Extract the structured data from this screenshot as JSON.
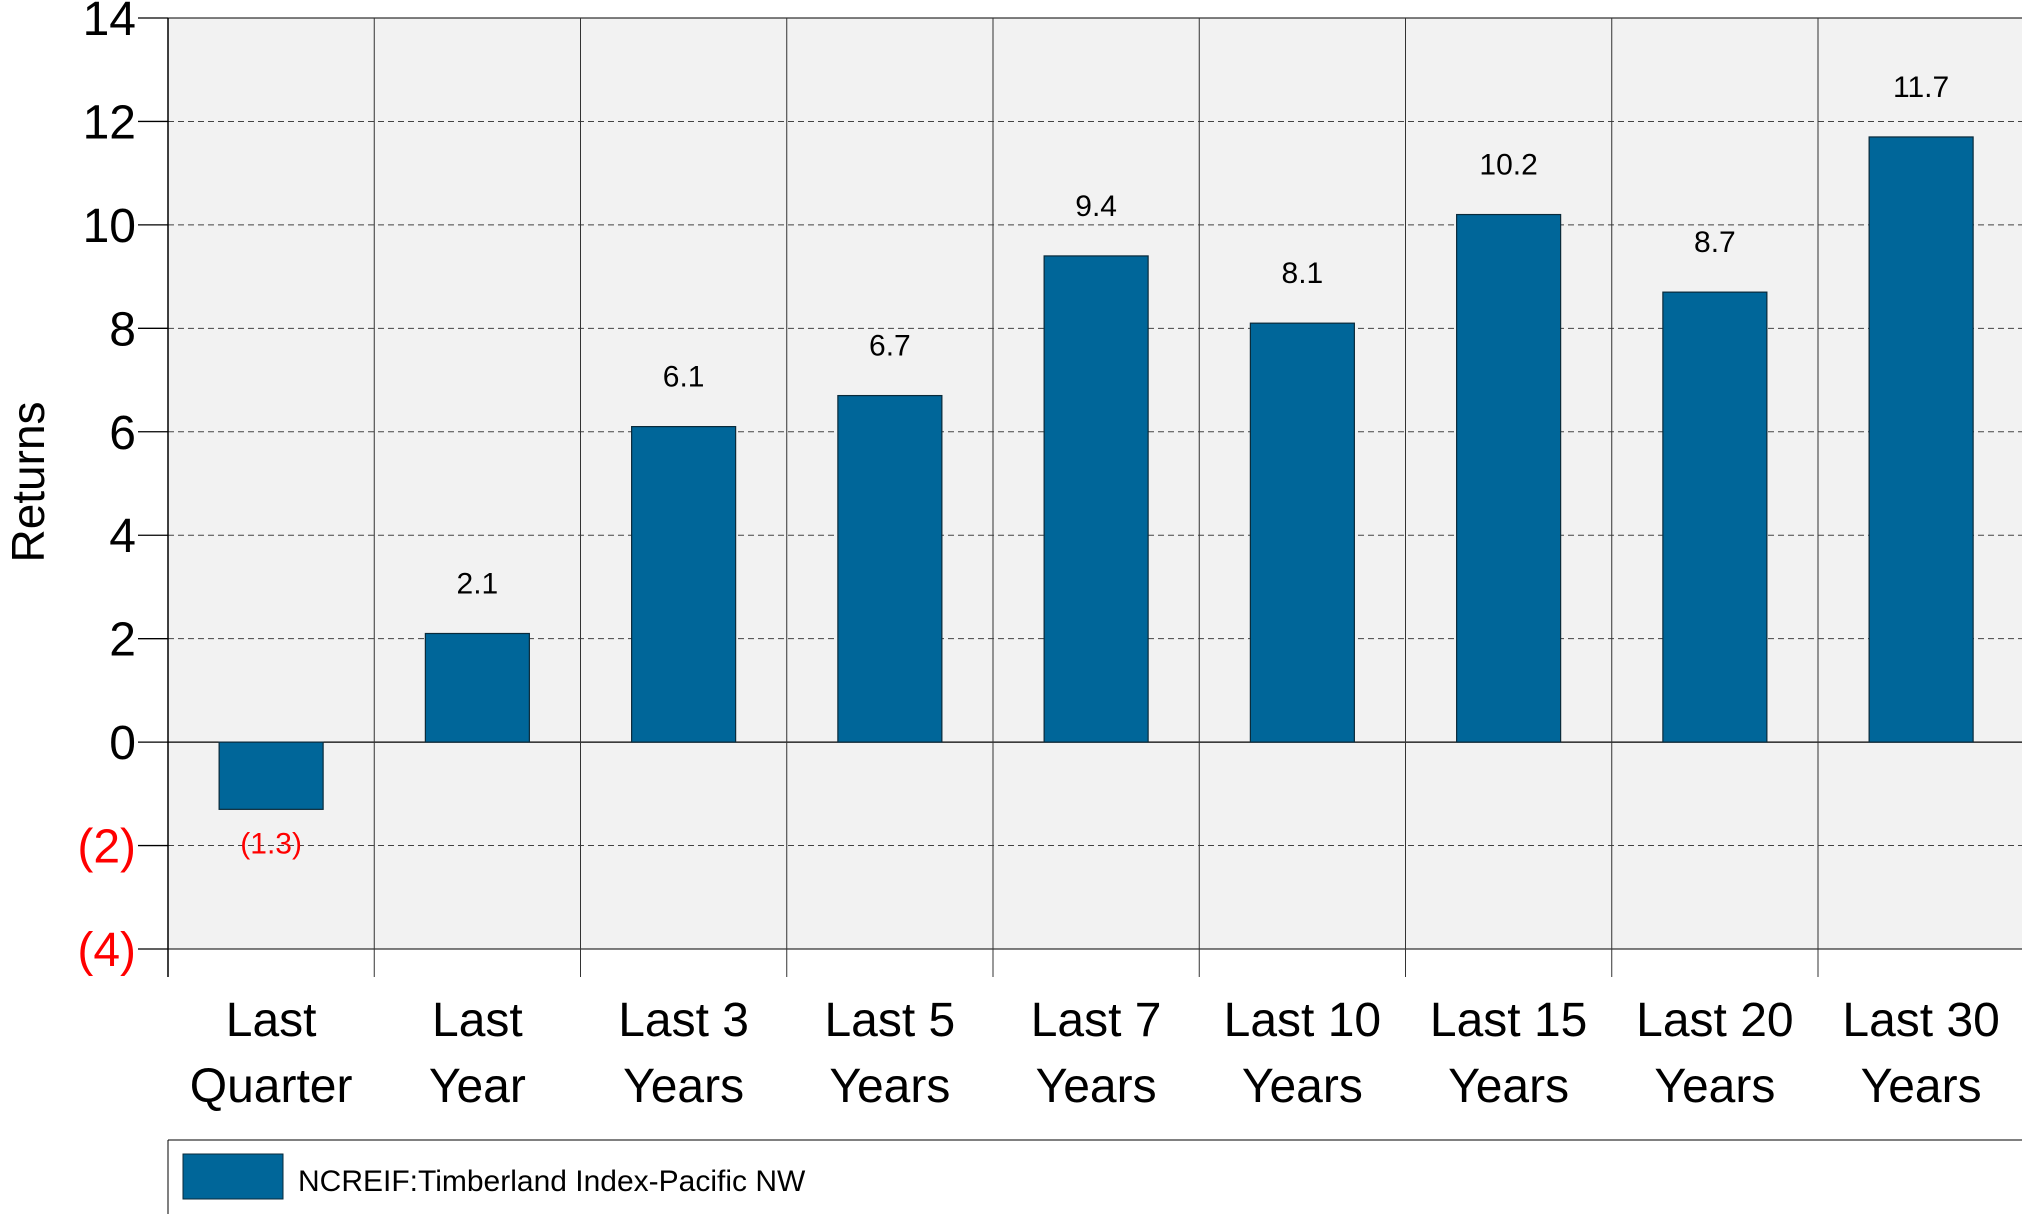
{
  "chart_data": {
    "type": "bar",
    "categories": [
      [
        "Last",
        "Quarter"
      ],
      [
        "Last",
        "Year"
      ],
      [
        "Last 3",
        "Years"
      ],
      [
        "Last 5",
        "Years"
      ],
      [
        "Last 7",
        "Years"
      ],
      [
        "Last 10",
        "Years"
      ],
      [
        "Last 15",
        "Years"
      ],
      [
        "Last 20",
        "Years"
      ],
      [
        "Last 30",
        "Years"
      ]
    ],
    "series": [
      {
        "name": "NCREIF:Timberland Index-Pacific NW",
        "values": [
          -1.3,
          2.1,
          6.1,
          6.7,
          9.4,
          8.1,
          10.2,
          8.7,
          11.7
        ],
        "data_labels": [
          "(1.3)",
          "2.1",
          "6.1",
          "6.7",
          "9.4",
          "8.1",
          "10.2",
          "8.7",
          "11.7"
        ]
      }
    ],
    "ylabel": "Returns",
    "xlabel": "",
    "ylim": [
      -4,
      14
    ],
    "yticks": [
      14,
      12,
      10,
      8,
      6,
      4,
      2,
      0,
      -2,
      -4
    ],
    "ytick_labels": [
      "14",
      "12",
      "10",
      "8",
      "6",
      "4",
      "2",
      "0",
      "(2)",
      "(4)"
    ],
    "grid": true,
    "legend_position": "bottom",
    "colors": {
      "bar": "#006699",
      "bar_edge": "#0a2a3a",
      "negative_text": "#ff0000",
      "plot_background": "#f2f2f2"
    }
  }
}
